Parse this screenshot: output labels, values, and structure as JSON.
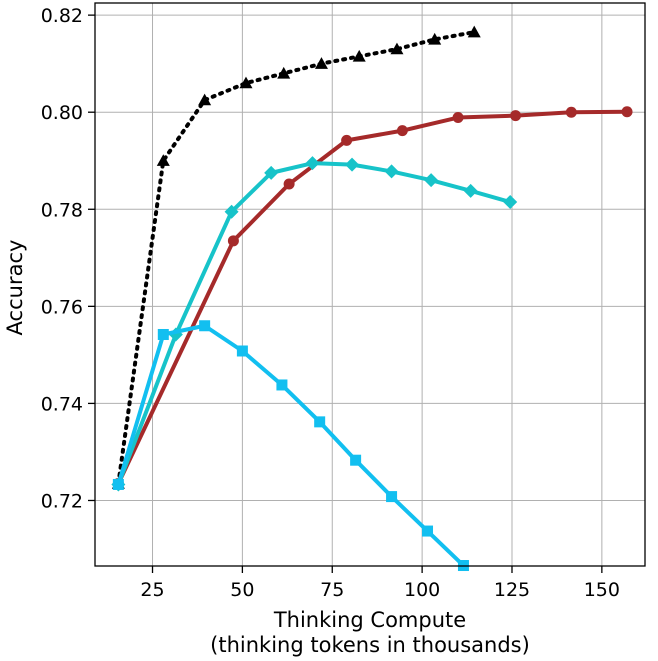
{
  "chart_data": {
    "type": "line",
    "title": "",
    "xlabel_lines": [
      "Thinking Compute",
      "(thinking tokens in thousands)"
    ],
    "ylabel": "Accuracy",
    "xlim": [
      9,
      162
    ],
    "ylim": [
      0.7065,
      0.8225
    ],
    "xticks": [
      25,
      50,
      75,
      100,
      125,
      150
    ],
    "xtick_labels": [
      "25",
      "50",
      "75",
      "100",
      "125",
      "150"
    ],
    "yticks": [
      0.72,
      0.74,
      0.76,
      0.78,
      0.8,
      0.82
    ],
    "ytick_labels": [
      "0.72",
      "0.74",
      "0.76",
      "0.78",
      "0.80",
      "0.82"
    ],
    "grid": true,
    "series": [
      {
        "color": "#000000",
        "line_style": "dotted",
        "marker": "triangle",
        "points": [
          [
            15.5,
            0.7235
          ],
          [
            28,
            0.79
          ],
          [
            39.5,
            0.8025
          ],
          [
            51,
            0.806
          ],
          [
            61.5,
            0.808
          ],
          [
            72,
            0.81
          ],
          [
            82.5,
            0.8115
          ],
          [
            93,
            0.813
          ],
          [
            103.5,
            0.815
          ],
          [
            114.5,
            0.8165
          ]
        ]
      },
      {
        "color": "#a52a2a",
        "line_style": "solid",
        "marker": "circle",
        "points": [
          [
            15.5,
            0.7235
          ],
          [
            47.5,
            0.7735
          ],
          [
            63,
            0.7852
          ],
          [
            79,
            0.7942
          ],
          [
            94.5,
            0.7962
          ],
          [
            110,
            0.7989
          ],
          [
            126,
            0.7993
          ],
          [
            141.5,
            0.8
          ],
          [
            157,
            0.8001
          ]
        ]
      },
      {
        "color": "#17c3c9",
        "line_style": "solid",
        "marker": "diamond",
        "points": [
          [
            15.5,
            0.7233
          ],
          [
            31.5,
            0.7542
          ],
          [
            47,
            0.7795
          ],
          [
            58,
            0.7875
          ],
          [
            69.5,
            0.7895
          ],
          [
            80.5,
            0.7892
          ],
          [
            91.5,
            0.7878
          ],
          [
            102.5,
            0.786
          ],
          [
            113.5,
            0.7838
          ],
          [
            124.5,
            0.7815
          ]
        ]
      },
      {
        "color": "#12bff0",
        "line_style": "solid",
        "marker": "square",
        "points": [
          [
            15.5,
            0.7233
          ],
          [
            28,
            0.7542
          ],
          [
            39.5,
            0.756
          ],
          [
            50,
            0.7508
          ],
          [
            61,
            0.7438
          ],
          [
            71.5,
            0.7362
          ],
          [
            81.5,
            0.7283
          ],
          [
            91.5,
            0.7208
          ],
          [
            101.5,
            0.7137
          ],
          [
            111.5,
            0.7066
          ]
        ]
      }
    ]
  }
}
